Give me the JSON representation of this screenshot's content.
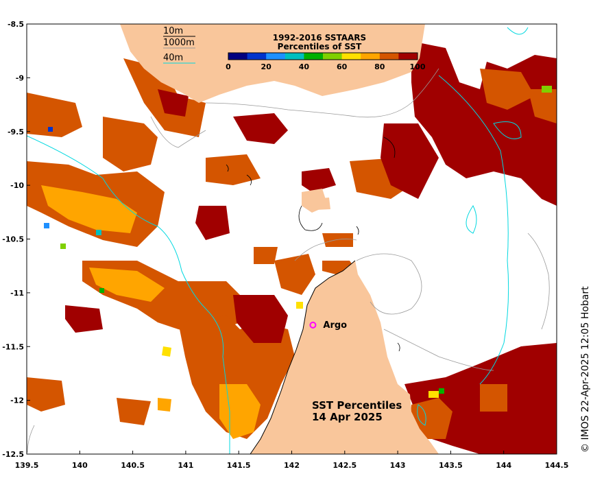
{
  "map": {
    "title": "SST Percentiles",
    "date": "14 Apr 2025",
    "credit": "© IMOS 22-Apr-2025 12:05 Hobart",
    "lon_ticks": [
      "139.5",
      "140",
      "140.5",
      "141",
      "141.5",
      "142",
      "142.5",
      "143",
      "143.5",
      "144",
      "144.5"
    ],
    "lat_ticks": [
      "-8.5",
      "-9",
      "-9.5",
      "-10",
      "-10.5",
      "-11",
      "-11.5",
      "-12",
      "-12.5"
    ],
    "lon_range": [
      139.5,
      144.5
    ],
    "lat_range": [
      -12.5,
      -8.5
    ]
  },
  "legend": {
    "title_line1": "1992-2016 SSTAARS",
    "title_line2": "Percentiles of SST",
    "tick_labels": [
      "0",
      "20",
      "40",
      "60",
      "80",
      "100"
    ],
    "colors": [
      "#000080",
      "#0033cc",
      "#1e90ff",
      "#00bfbf",
      "#00b000",
      "#80d000",
      "#ffe000",
      "#ffa500",
      "#d45500",
      "#a00000"
    ]
  },
  "contours": {
    "label_10m": "10m",
    "label_1000m": "1000m",
    "label_40m": "40m",
    "color_10m": "#000000",
    "color_1000m": "#999999",
    "color_40m": "#00d8e0"
  },
  "argo": {
    "label": "Argo",
    "lon": 142.2,
    "lat": -11.3,
    "color": "#ff00ff"
  },
  "land_color": "#f9c69b"
}
